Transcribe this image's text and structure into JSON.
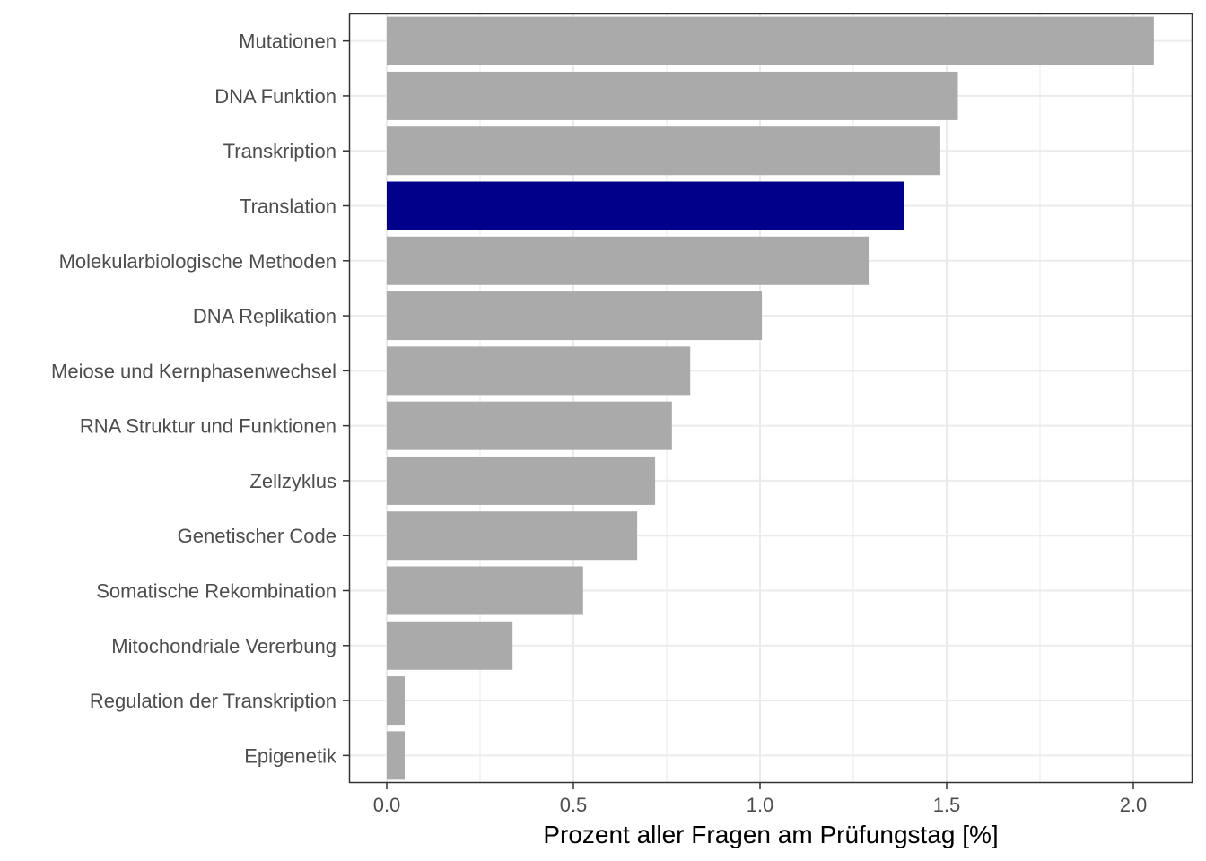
{
  "chart_data": {
    "type": "bar",
    "orientation": "horizontal",
    "title": "",
    "xlabel": "Prozent aller Fragen am Prüfungstag [%]",
    "ylabel": "",
    "xlim": [
      -0.1,
      2.15
    ],
    "xticks": [
      0,
      0.5,
      1,
      1.5,
      2
    ],
    "xtick_labels": [
      "0.0",
      "0.5",
      "1.0",
      "1.5",
      "2.0"
    ],
    "grid": true,
    "categories": [
      "Mutationen",
      "DNA Funktion",
      "Transkription",
      "Translation",
      "Molekularbiologische Methoden",
      "DNA Replikation",
      "Meiose und Kernphasenwechsel",
      "RNA Struktur und Funktionen",
      "Zellzyklus",
      "Genetischer Code",
      "Somatische Rekombination",
      "Mitochondriale Vererbung",
      "Regulation der Transkription",
      "Epigenetik"
    ],
    "values": [
      2.055,
      1.53,
      1.483,
      1.387,
      1.291,
      1.005,
      0.813,
      0.764,
      0.719,
      0.671,
      0.526,
      0.337,
      0.048,
      0.048
    ],
    "highlight": "Translation",
    "colors": {
      "default": "#aaaaaa",
      "highlight": "#00008b",
      "grid": "#ebebeb",
      "axis": "#333333"
    }
  }
}
